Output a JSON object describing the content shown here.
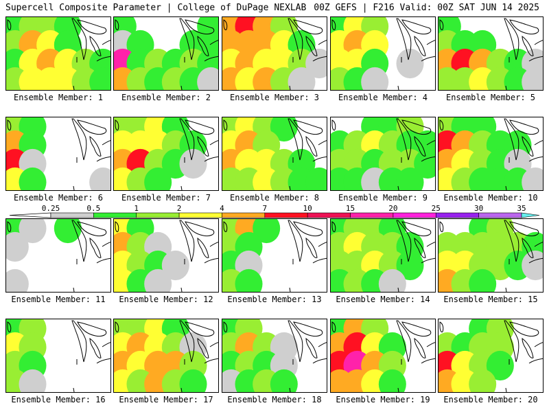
{
  "header": {
    "left_title": "Supercell Composite Parameter | College of DuPage NEXLAB",
    "right_title": "00Z GEFS | F216 Valid: 00Z SAT JUN 14 2025"
  },
  "colors": {
    "lt_gray": "#cfcfcf",
    "green": "#33ee33",
    "lt_green": "#99ee33",
    "yellow": "#ffff33",
    "orange_lt": "#ffaa22",
    "orange": "#ff7722",
    "red": "#ff1122",
    "crimson": "#ee1155",
    "magenta": "#ff22aa",
    "pink": "#ff22dd",
    "purple": "#9922ee",
    "lt_purple": "#bb66ee",
    "cyan": "#66eeee",
    "outline": "#000000"
  },
  "legend": {
    "labels": [
      "0.25",
      "0.5",
      "1",
      "2",
      "4",
      "7",
      "10",
      "15",
      "20",
      "25",
      "30",
      "35"
    ],
    "bins": [
      {
        "from": "0.25",
        "to": "0.5",
        "color": "#cfcfcf"
      },
      {
        "from": "0.5",
        "to": "1",
        "color": "#33ee33"
      },
      {
        "from": "1",
        "to": "2",
        "color": "#99ee33"
      },
      {
        "from": "2",
        "to": "4",
        "color": "#ffff33"
      },
      {
        "from": "4",
        "to": "7",
        "color": "#ffaa22"
      },
      {
        "from": "7",
        "to": "10",
        "color": "#ff1122"
      },
      {
        "from": "10",
        "to": "15",
        "color": "#ee1155"
      },
      {
        "from": "15",
        "to": "20",
        "color": "#ff22aa"
      },
      {
        "from": "20",
        "to": "25",
        "color": "#ff22dd"
      },
      {
        "from": "25",
        "to": "30",
        "color": "#9922ee"
      },
      {
        "from": "30",
        "to": "35",
        "color": "#bb66ee"
      },
      {
        "from": "35",
        "to": "",
        "color": "#66eeee"
      }
    ]
  },
  "members": [
    {
      "label": "Ensemble Member: 1",
      "pattern": [
        [
          "#33ee33",
          "#99ee33",
          "#99ee33",
          "#33ee33",
          null,
          null
        ],
        [
          "#99ee33",
          "#ffaa22",
          "#ffff33",
          "#33ee33",
          null,
          null
        ],
        [
          "#33ee33",
          "#ffff33",
          "#ffaa22",
          "#ffff33",
          "#99ee33",
          "#33ee33"
        ],
        [
          "#99ee33",
          "#ffff33",
          "#ffff33",
          "#ffff33",
          "#99ee33",
          "#33ee33"
        ]
      ]
    },
    {
      "label": "Ensemble Member: 2",
      "pattern": [
        [
          "#33ee33",
          null,
          null,
          null,
          null,
          "#33ee33"
        ],
        [
          "#cfcfcf",
          "#33ee33",
          null,
          null,
          "#33ee33",
          "#33ee33"
        ],
        [
          "#ff22aa",
          "#33ee33",
          "#99ee33",
          "#33ee33",
          "#99ee33",
          "#33ee33"
        ],
        [
          "#ffaa22",
          "#99ee33",
          "#33ee33",
          "#99ee33",
          "#33ee33",
          "#cfcfcf"
        ]
      ]
    },
    {
      "label": "Ensemble Member: 3",
      "pattern": [
        [
          "#ffaa22",
          "#ff1122",
          "#ffaa22",
          "#99ee33",
          null,
          null
        ],
        [
          "#ffaa22",
          "#ffaa22",
          "#ffaa22",
          "#ffff33",
          "#33ee33",
          null
        ],
        [
          "#ffff33",
          "#ffaa22",
          "#ffff33",
          "#ffff33",
          "#99ee33",
          "#cfcfcf"
        ],
        [
          "#ffaa22",
          "#ffff33",
          "#ffaa22",
          "#99ee33",
          "#cfcfcf",
          null
        ]
      ]
    },
    {
      "label": "Ensemble Member: 4",
      "pattern": [
        [
          "#33ee33",
          "#ffff33",
          "#99ee33",
          null,
          null,
          null
        ],
        [
          "#ffff33",
          "#ffaa22",
          "#ffff33",
          null,
          null,
          null
        ],
        [
          "#ffff33",
          "#ffff33",
          "#33ee33",
          null,
          "#cfcfcf",
          null
        ],
        [
          "#99ee33",
          "#33ee33",
          "#cfcfcf",
          null,
          null,
          null
        ]
      ]
    },
    {
      "label": "Ensemble Member: 5",
      "pattern": [
        [
          "#33ee33",
          null,
          null,
          null,
          null,
          null
        ],
        [
          "#99ee33",
          "#33ee33",
          "#33ee33",
          null,
          null,
          null
        ],
        [
          "#ffaa22",
          "#ff1122",
          "#ffaa22",
          "#99ee33",
          "#33ee33",
          "#cfcfcf"
        ],
        [
          "#99ee33",
          "#99ee33",
          "#ffff33",
          "#99ee33",
          "#33ee33",
          "#cfcfcf"
        ]
      ]
    },
    {
      "label": "Ensemble Member: 6",
      "pattern": [
        [
          "#99ee33",
          "#33ee33",
          null,
          null,
          null,
          null
        ],
        [
          "#ffaa22",
          "#33ee33",
          null,
          null,
          null,
          null
        ],
        [
          "#ff1122",
          "#cfcfcf",
          null,
          null,
          null,
          null
        ],
        [
          "#ffff33",
          "#33ee33",
          null,
          null,
          null,
          "#cfcfcf"
        ]
      ]
    },
    {
      "label": "Ensemble Member: 7",
      "pattern": [
        [
          "#99ee33",
          "#99ee33",
          "#ffff33",
          "#33ee33",
          null,
          null
        ],
        [
          "#ffff33",
          "#ffff33",
          "#ffff33",
          "#99ee33",
          "#33ee33",
          null
        ],
        [
          "#ffaa22",
          "#ff1122",
          "#99ee33",
          "#33ee33",
          "#cfcfcf",
          null
        ],
        [
          "#ffff33",
          "#99ee33",
          "#33ee33",
          null,
          null,
          null
        ]
      ]
    },
    {
      "label": "Ensemble Member: 8",
      "pattern": [
        [
          "#99ee33",
          "#ffff33",
          "#99ee33",
          "#33ee33",
          null,
          null
        ],
        [
          "#ffff33",
          "#ffaa22",
          "#99ee33",
          null,
          null,
          null
        ],
        [
          "#ffaa22",
          "#ffff33",
          "#ffff33",
          "#99ee33",
          "#33ee33",
          null
        ],
        [
          "#99ee33",
          "#99ee33",
          "#ffff33",
          "#99ee33",
          "#33ee33",
          "#33ee33"
        ]
      ]
    },
    {
      "label": "Ensemble Member: 9",
      "pattern": [
        [
          null,
          null,
          "#33ee33",
          "#33ee33",
          "#99ee33",
          null
        ],
        [
          "#33ee33",
          "#99ee33",
          "#ffff33",
          "#99ee33",
          "#33ee33",
          "#33ee33"
        ],
        [
          "#99ee33",
          "#99ee33",
          "#33ee33",
          "#99ee33",
          "#99ee33",
          "#33ee33"
        ],
        [
          "#33ee33",
          "#33ee33",
          "#cfcfcf",
          "#33ee33",
          "#33ee33",
          null
        ]
      ]
    },
    {
      "label": "Ensemble Member: 10",
      "pattern": [
        [
          "#99ee33",
          "#33ee33",
          "#33ee33",
          null,
          null,
          null
        ],
        [
          "#ff1122",
          "#ffaa22",
          "#99ee33",
          "#33ee33",
          "#33ee33",
          null
        ],
        [
          "#ffaa22",
          "#ffff33",
          "#99ee33",
          "#33ee33",
          "#cfcfcf",
          null
        ],
        [
          "#ffff33",
          "#99ee33",
          "#33ee33",
          "#33ee33",
          "#33ee33",
          "#cfcfcf"
        ]
      ]
    },
    {
      "label": "Ensemble Member: 11",
      "pattern": [
        [
          "#33ee33",
          "#cfcfcf",
          null,
          "#33ee33",
          null,
          null
        ],
        [
          "#cfcfcf",
          null,
          null,
          null,
          null,
          null
        ],
        [
          null,
          null,
          null,
          null,
          null,
          null
        ],
        [
          "#cfcfcf",
          null,
          null,
          null,
          null,
          null
        ]
      ]
    },
    {
      "label": "Ensemble Member: 12",
      "pattern": [
        [
          "#ffff33",
          "#33ee33",
          null,
          null,
          null,
          null
        ],
        [
          "#ffaa22",
          "#99ee33",
          "#cfcfcf",
          null,
          null,
          null
        ],
        [
          "#ffff33",
          "#99ee33",
          "#33ee33",
          "#cfcfcf",
          null,
          null
        ],
        [
          "#ffff33",
          "#33ee33",
          "#cfcfcf",
          null,
          null,
          null
        ]
      ]
    },
    {
      "label": "Ensemble Member: 13",
      "pattern": [
        [
          "#99ee33",
          "#ffaa22",
          "#33ee33",
          null,
          null,
          null
        ],
        [
          "#99ee33",
          "#33ee33",
          null,
          null,
          null,
          null
        ],
        [
          "#33ee33",
          "#cfcfcf",
          null,
          null,
          null,
          null
        ],
        [
          "#99ee33",
          "#33ee33",
          null,
          null,
          null,
          null
        ]
      ]
    },
    {
      "label": "Ensemble Member: 14",
      "pattern": [
        [
          "#33ee33",
          "#99ee33",
          "#99ee33",
          "#33ee33",
          null,
          null
        ],
        [
          "#99ee33",
          "#ffff33",
          "#99ee33",
          "#99ee33",
          "#33ee33",
          null
        ],
        [
          "#99ee33",
          "#99ee33",
          "#ffff33",
          "#99ee33",
          "#33ee33",
          null
        ],
        [
          "#33ee33",
          "#99ee33",
          "#33ee33",
          "#cfcfcf",
          null,
          null
        ]
      ]
    },
    {
      "label": "Ensemble Member: 15",
      "pattern": [
        [
          null,
          null,
          "#33ee33",
          "#99ee33",
          null,
          null
        ],
        [
          "#99ee33",
          "#99ee33",
          "#99ee33",
          "#99ee33",
          "#99ee33",
          "#33ee33"
        ],
        [
          "#ffff33",
          "#ffff33",
          "#99ee33",
          "#99ee33",
          "#33ee33",
          "#cfcfcf"
        ],
        [
          "#ffaa22",
          "#99ee33",
          "#33ee33",
          null,
          null,
          null
        ]
      ]
    },
    {
      "label": "Ensemble Member: 16",
      "pattern": [
        [
          "#33ee33",
          "#99ee33",
          null,
          null,
          null,
          null
        ],
        [
          "#ffff33",
          "#99ee33",
          null,
          null,
          null,
          null
        ],
        [
          "#99ee33",
          "#33ee33",
          null,
          null,
          null,
          null
        ],
        [
          "#99ee33",
          "#cfcfcf",
          null,
          null,
          null,
          null
        ]
      ]
    },
    {
      "label": "Ensemble Member: 17",
      "pattern": [
        [
          "#99ee33",
          "#99ee33",
          "#ffff33",
          "#33ee33",
          null,
          null
        ],
        [
          "#ffff33",
          "#ffaa22",
          "#ffff33",
          "#99ee33",
          "#cfcfcf",
          null
        ],
        [
          "#ffaa22",
          "#ffff33",
          "#ffaa22",
          "#ffaa22",
          "#99ee33",
          null
        ],
        [
          "#ffff33",
          "#99ee33",
          "#ffaa22",
          "#99ee33",
          "#33ee33",
          null
        ]
      ]
    },
    {
      "label": "Ensemble Member: 18",
      "pattern": [
        [
          "#33ee33",
          "#99ee33",
          null,
          null,
          null,
          null
        ],
        [
          "#99ee33",
          "#ffaa22",
          "#99ee33",
          "#cfcfcf",
          null,
          null
        ],
        [
          "#33ee33",
          "#99ee33",
          "#33ee33",
          "#cfcfcf",
          null,
          null
        ],
        [
          "#cfcfcf",
          "#33ee33",
          "#99ee33",
          "#33ee33",
          null,
          null
        ]
      ]
    },
    {
      "label": "Ensemble Member: 19",
      "pattern": [
        [
          "#33ee33",
          "#ffaa22",
          "#99ee33",
          null,
          null,
          null
        ],
        [
          "#ffaa22",
          "#ff1122",
          "#ffff33",
          "#33ee33",
          null,
          null
        ],
        [
          "#ff1122",
          "#ff22aa",
          "#ffaa22",
          "#99ee33",
          null,
          null
        ],
        [
          "#ffaa22",
          "#ffaa22",
          "#ffff33",
          "#33ee33",
          null,
          null
        ]
      ]
    },
    {
      "label": "Ensemble Member: 20",
      "pattern": [
        [
          null,
          null,
          "#33ee33",
          "#99ee33",
          null,
          null
        ],
        [
          "#99ee33",
          "#33ee33",
          "#99ee33",
          "#99ee33",
          null,
          null
        ],
        [
          "#ff1122",
          "#ffff33",
          "#99ee33",
          "#33ee33",
          null,
          null
        ],
        [
          "#ffaa22",
          "#ffff33",
          "#99ee33",
          null,
          null,
          null
        ]
      ]
    }
  ]
}
